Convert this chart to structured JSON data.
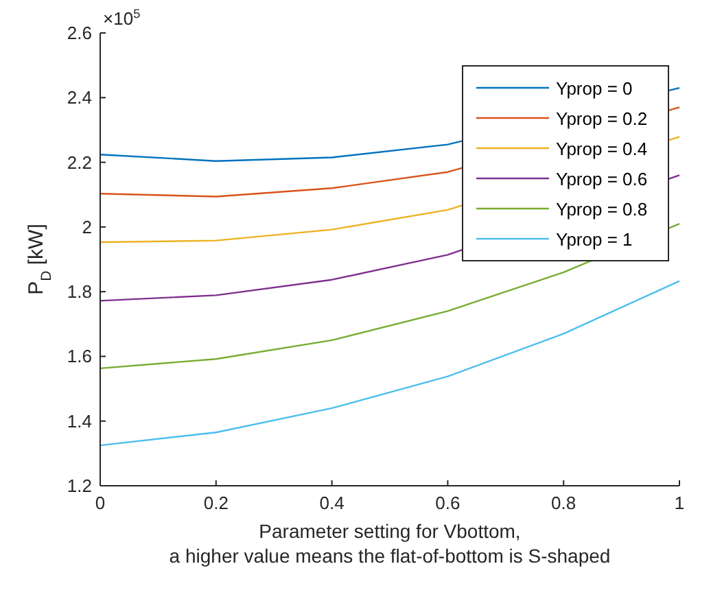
{
  "chart_data": {
    "type": "line",
    "xlabel": "Parameter setting for Vbottom,\na higher value means the flat-of-bottom is S-shaped",
    "ylabel": "P$_{D}$ [kW]",
    "annotations": [
      "×10$^{5}$"
    ],
    "x": [
      0,
      0.2,
      0.4,
      0.6,
      0.8,
      1
    ],
    "xlim": [
      0,
      1
    ],
    "xticks": [
      0,
      0.2,
      0.4,
      0.6,
      0.8,
      1
    ],
    "ylim": [
      1.2,
      2.6
    ],
    "yticks": [
      1.2,
      1.4,
      1.6,
      1.8,
      2,
      2.2,
      2.4,
      2.6
    ],
    "grid": false,
    "legend": "top right",
    "marker": "none",
    "line_style": "solid",
    "series": [
      {
        "name": "Yprop = 0",
        "color": "#0072bd",
        "values": [
          2.224,
          2.204,
          2.215,
          2.255,
          null,
          2.43
        ]
      },
      {
        "name": "Yprop = 0.2",
        "color": "#d95319",
        "values": [
          2.103,
          2.094,
          2.12,
          2.17,
          null,
          2.37
        ]
      },
      {
        "name": "Yprop = 0.4",
        "color": "#edb120",
        "values": [
          1.953,
          1.958,
          1.992,
          2.053,
          null,
          2.279
        ]
      },
      {
        "name": "Yprop = 0.6",
        "color": "#7e2f8e",
        "values": [
          1.772,
          1.789,
          1.837,
          1.914,
          null,
          2.16
        ]
      },
      {
        "name": "Yprop = 0.8",
        "color": "#77ac30",
        "values": [
          1.563,
          1.592,
          1.65,
          1.74,
          1.86,
          2.01
        ]
      },
      {
        "name": "Yprop = 1",
        "color": "#4dbeee",
        "values": [
          1.325,
          1.365,
          1.44,
          1.538,
          1.67,
          1.833
        ]
      }
    ]
  }
}
